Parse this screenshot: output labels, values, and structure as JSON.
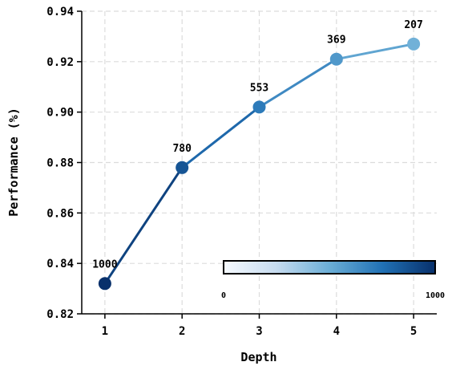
{
  "chart_data": {
    "type": "line",
    "xlabel": "Depth",
    "ylabel": "Performance (%)",
    "x": [
      1,
      2,
      3,
      4,
      5
    ],
    "xticks": [
      "1",
      "2",
      "3",
      "4",
      "5"
    ],
    "xlim": [
      0.7,
      5.3
    ],
    "ylim": [
      0.82,
      0.94
    ],
    "yticks": [
      "0.82",
      "0.84",
      "0.86",
      "0.88",
      "0.90",
      "0.92",
      "0.94"
    ],
    "grid": true,
    "series": [
      {
        "values": [
          0.832,
          0.878,
          0.902,
          0.921,
          0.927
        ],
        "point_labels": [
          "1000",
          "780",
          "553",
          "369",
          "207"
        ],
        "color_values": [
          1000,
          780,
          553,
          369,
          207
        ]
      }
    ],
    "colorbar": {
      "min_label": "0",
      "max_label": "1000",
      "min": 0,
      "max": 1000,
      "colormap": "Blues",
      "position": "bottom-right"
    }
  }
}
